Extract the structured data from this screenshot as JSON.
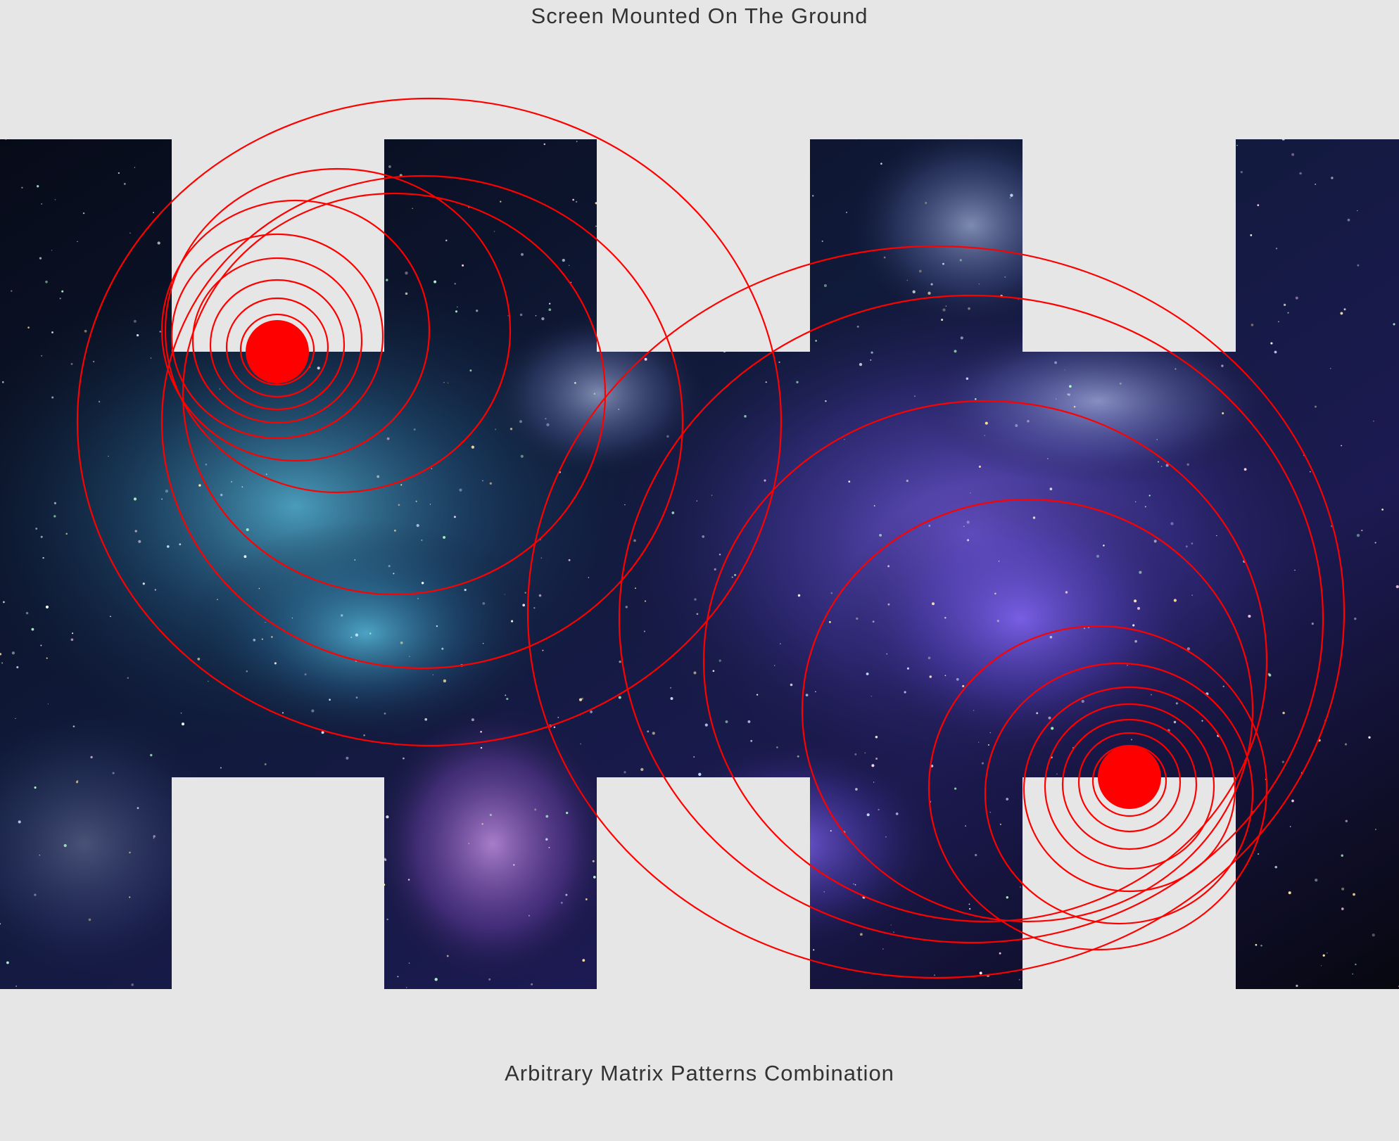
{
  "header": {
    "title": "Screen Mounted On The Ground"
  },
  "footer": {
    "caption": "Arbitrary Matrix Patterns Combination"
  },
  "colors": {
    "background": "#e6e6e6",
    "ring": "#ff0000",
    "caption_text": "#333333"
  },
  "screen": {
    "description_icon": "galaxy-nebula-texture",
    "sources": [
      {
        "name": "source-upper-left",
        "ring_count": 11
      },
      {
        "name": "source-lower-right",
        "ring_count": 12
      }
    ]
  }
}
